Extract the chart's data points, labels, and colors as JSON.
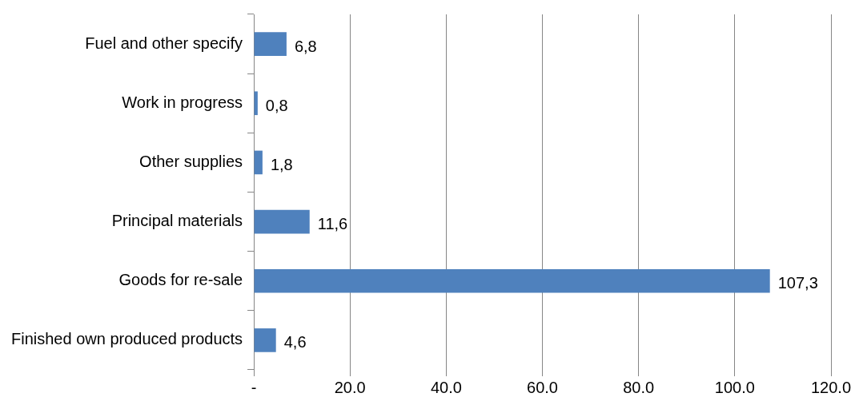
{
  "chart_data": {
    "type": "bar",
    "orientation": "horizontal",
    "categories": [
      "Fuel and other specify",
      "Work in progress",
      "Other supplies",
      "Principal materials",
      "Goods for re-sale",
      "Finished own produced products"
    ],
    "values": [
      6.8,
      0.8,
      1.8,
      11.6,
      107.3,
      4.6
    ],
    "value_labels": [
      "6,8",
      "0,8",
      "1,8",
      "11,6",
      "107,3",
      "4,6"
    ],
    "color": "#4f81bd",
    "xlim": [
      0,
      120
    ],
    "xticks": [
      {
        "value": 0,
        "label": "-"
      },
      {
        "value": 20,
        "label": "20.0"
      },
      {
        "value": 40,
        "label": "40.0"
      },
      {
        "value": 60,
        "label": "60.0"
      },
      {
        "value": 80,
        "label": "80.0"
      },
      {
        "value": 100,
        "label": "100.0"
      },
      {
        "value": 120,
        "label": "120.0"
      }
    ],
    "grid": "x",
    "legend": false
  }
}
